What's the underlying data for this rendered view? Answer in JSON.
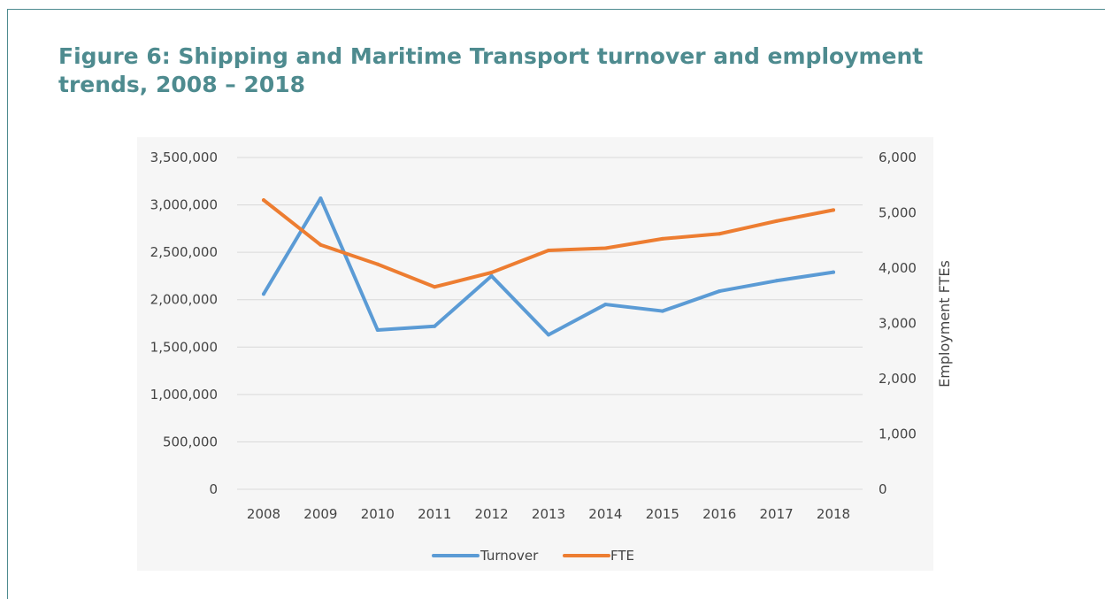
{
  "figure": {
    "title": "Figure 6: Shipping and Maritime Transport turnover and employment trends, 2008 – 2018"
  },
  "chart_data": {
    "type": "line",
    "title": "",
    "categories": [
      "2008",
      "2009",
      "2010",
      "2011",
      "2012",
      "2013",
      "2014",
      "2015",
      "2016",
      "2017",
      "2018"
    ],
    "series": [
      {
        "name": "Turnover",
        "axis": "left",
        "color": "#5b9bd5",
        "values": [
          2060000,
          3070000,
          1680000,
          1720000,
          2250000,
          1630000,
          1950000,
          1880000,
          2090000,
          2200000,
          2290000
        ]
      },
      {
        "name": "FTE",
        "axis": "right",
        "color": "#ed7d31",
        "values": [
          5230,
          4420,
          4070,
          3660,
          3920,
          4320,
          4360,
          4530,
          4620,
          4850,
          5050
        ]
      }
    ],
    "y_left": {
      "label": "",
      "ylim": [
        0,
        3500000
      ],
      "ticks": [
        0,
        500000,
        1000000,
        1500000,
        2000000,
        2500000,
        3000000,
        3500000
      ],
      "tick_labels": [
        "0",
        "500,000",
        "1,000,000",
        "1,500,000",
        "2,000,000",
        "2,500,000",
        "3,000,000",
        "3,500,000"
      ]
    },
    "y_right": {
      "label": "Employment FTEs",
      "ylim": [
        0,
        6000
      ],
      "ticks": [
        0,
        1000,
        2000,
        3000,
        4000,
        5000,
        6000
      ],
      "tick_labels": [
        "0",
        "1,000",
        "2,000",
        "3,000",
        "4,000",
        "5,000",
        "6,000"
      ]
    },
    "grid": true,
    "legend_position": "bottom"
  }
}
